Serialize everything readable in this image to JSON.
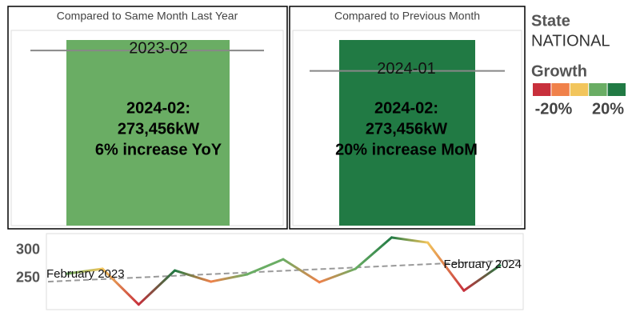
{
  "chart_data": [
    {
      "type": "bar",
      "title": "Compared to Same Month Last Year",
      "values": [
        273456
      ],
      "color": "#6aad64",
      "ylim": [
        0,
        287600
      ],
      "reference": {
        "label": "2023-02",
        "value": 257977
      },
      "annotation": [
        "2024-02:",
        "273,456kW",
        "6% increase YoY"
      ]
    },
    {
      "type": "bar",
      "title": "Compared to Previous Month",
      "values": [
        273456
      ],
      "color": "#217a44",
      "ylim": [
        0,
        287600
      ],
      "reference": {
        "label": "2024-01",
        "value": 227880
      },
      "annotation": [
        "2024-02:",
        "273,456kW",
        "20% increase MoM"
      ]
    },
    {
      "type": "line",
      "categories": [
        "February 2023",
        null,
        null,
        null,
        null,
        null,
        null,
        null,
        null,
        null,
        null,
        null,
        "February 2024"
      ],
      "values": [
        258,
        267,
        203,
        264,
        244,
        257,
        284,
        243,
        267,
        323,
        314,
        228,
        273
      ],
      "trend": [
        244,
        283
      ],
      "ylim": [
        194,
        330
      ],
      "yticks": [
        250,
        300
      ]
    }
  ],
  "legend": {
    "state_title": "State",
    "state": "NATIONAL",
    "growth_title": "Growth",
    "colors": [
      "#c8303c",
      "#f0814a",
      "#f2c55c",
      "#6aad64",
      "#217a44"
    ],
    "labels": [
      "-20%",
      "20%"
    ]
  }
}
